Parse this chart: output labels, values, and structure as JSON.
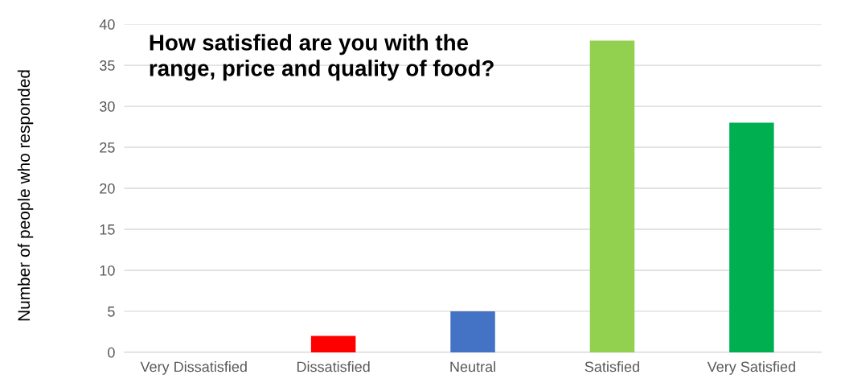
{
  "chart_data": {
    "type": "bar",
    "title": "How satisfied are you with the\nrange, price and quality of food?",
    "ylabel": "Number of people who responded",
    "categories": [
      "Very Dissatisfied",
      "Dissatisfied",
      "Neutral",
      "Satisfied",
      "Very Satisfied"
    ],
    "values": [
      0,
      2,
      5,
      38,
      28
    ],
    "colors": [
      "#c00000",
      "#ff0000",
      "#4472c4",
      "#92d050",
      "#00b050"
    ],
    "ylim": [
      0,
      40
    ],
    "yticks": [
      0,
      5,
      10,
      15,
      20,
      25,
      30,
      35,
      40
    ],
    "grid": "y",
    "legend": false
  }
}
